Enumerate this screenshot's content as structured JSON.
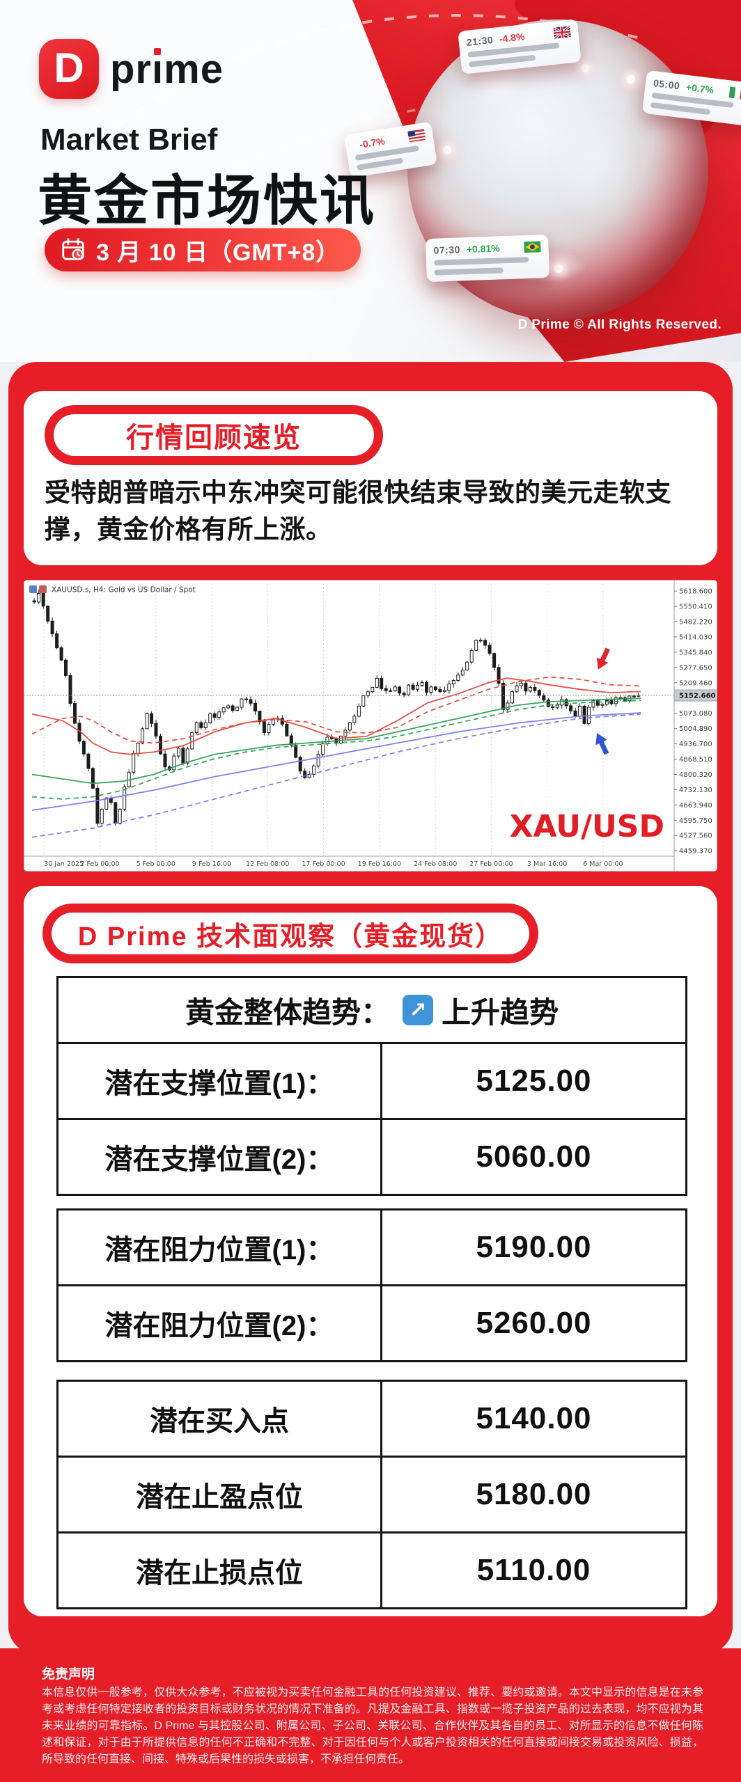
{
  "brand": {
    "d": "D",
    "pre": "pr",
    "stem": "ı",
    "post": "me"
  },
  "header": {
    "kicker": "Market Brief",
    "title": "黄金市场快讯",
    "date": "3 月 10 日（GMT+8）",
    "copyright": "D Prime © All Rights Reserved.",
    "globe_cards": [
      {
        "time": "21:30",
        "change": "-4.8%",
        "dir": "down",
        "flag": "uk"
      },
      {
        "time": "05:00",
        "change": "+0.7%",
        "dir": "up",
        "flag": "it"
      },
      {
        "time": "",
        "change": "-0.7%",
        "dir": "down",
        "flag": "us"
      },
      {
        "time": "07:30",
        "change": "+0.81%",
        "dir": "up",
        "flag": "br"
      }
    ]
  },
  "review": {
    "badge": "行情回顾速览",
    "paragraph": "受特朗普暗示中东冲突可能很快结束导致的美元走软支撑，黄金价格有所上涨。"
  },
  "chart_data": {
    "type": "candlestick",
    "title": "XAUUSD.s, H4: Gold vs US Dollar / Spot",
    "watermark": "XAU/USD",
    "current_price": "5152.660",
    "ylim": [
      4435,
      5650
    ],
    "grid": "dotted",
    "y_ticks": [
      "5618.600",
      "5550.410",
      "5482.220",
      "5414.030",
      "5345.840",
      "5277.650",
      "5209.460",
      "5141.270",
      "5073.080",
      "5004.890",
      "4936.700",
      "4868.510",
      "4800.320",
      "4732.130",
      "4663.940",
      "4595.750",
      "4527.560",
      "4459.370"
    ],
    "x_labels": [
      "30 Jan 2025",
      "2 Feb 00:00",
      "5 Feb 00:00",
      "9 Feb 16:00",
      "12 Feb 08:00",
      "17 Feb 00:00",
      "19 Feb 16:00",
      "24 Feb 08:00",
      "27 Feb 00:00",
      "3 Mar 16:00",
      "6 Mar 00:00"
    ],
    "price_path": [
      [
        0,
        5575
      ],
      [
        0.008,
        5610
      ],
      [
        0.02,
        5500
      ],
      [
        0.035,
        5390
      ],
      [
        0.05,
        5280
      ],
      [
        0.06,
        5120
      ],
      [
        0.07,
        4990
      ],
      [
        0.08,
        4905
      ],
      [
        0.09,
        4815
      ],
      [
        0.1,
        4700
      ],
      [
        0.105,
        4565
      ],
      [
        0.112,
        4650
      ],
      [
        0.12,
        4705
      ],
      [
        0.13,
        4660
      ],
      [
        0.136,
        4545
      ],
      [
        0.145,
        4690
      ],
      [
        0.155,
        4800
      ],
      [
        0.165,
        4900
      ],
      [
        0.175,
        4960
      ],
      [
        0.185,
        5075
      ],
      [
        0.195,
        5020
      ],
      [
        0.205,
        4935
      ],
      [
        0.215,
        4845
      ],
      [
        0.222,
        4805
      ],
      [
        0.23,
        4870
      ],
      [
        0.24,
        4915
      ],
      [
        0.248,
        4840
      ],
      [
        0.26,
        4985
      ],
      [
        0.27,
        5040
      ],
      [
        0.28,
        5000
      ],
      [
        0.29,
        5075
      ],
      [
        0.3,
        5050
      ],
      [
        0.31,
        5090
      ],
      [
        0.32,
        5115
      ],
      [
        0.33,
        5080
      ],
      [
        0.34,
        5125
      ],
      [
        0.35,
        5145
      ],
      [
        0.36,
        5105
      ],
      [
        0.37,
        5070
      ],
      [
        0.38,
        4985
      ],
      [
        0.39,
        5025
      ],
      [
        0.4,
        5060
      ],
      [
        0.41,
        5030
      ],
      [
        0.42,
        4960
      ],
      [
        0.43,
        4895
      ],
      [
        0.44,
        4820
      ],
      [
        0.45,
        4770
      ],
      [
        0.46,
        4815
      ],
      [
        0.47,
        4885
      ],
      [
        0.48,
        4950
      ],
      [
        0.49,
        4970
      ],
      [
        0.5,
        4945
      ],
      [
        0.51,
        4985
      ],
      [
        0.52,
        5015
      ],
      [
        0.53,
        5065
      ],
      [
        0.54,
        5130
      ],
      [
        0.55,
        5165
      ],
      [
        0.56,
        5195
      ],
      [
        0.565,
        5235
      ],
      [
        0.575,
        5180
      ],
      [
        0.585,
        5165
      ],
      [
        0.595,
        5195
      ],
      [
        0.61,
        5150
      ],
      [
        0.62,
        5205
      ],
      [
        0.63,
        5180
      ],
      [
        0.64,
        5215
      ],
      [
        0.65,
        5170
      ],
      [
        0.66,
        5195
      ],
      [
        0.67,
        5160
      ],
      [
        0.68,
        5185
      ],
      [
        0.69,
        5205
      ],
      [
        0.7,
        5235
      ],
      [
        0.71,
        5265
      ],
      [
        0.72,
        5325
      ],
      [
        0.73,
        5395
      ],
      [
        0.737,
        5415
      ],
      [
        0.745,
        5375
      ],
      [
        0.755,
        5335
      ],
      [
        0.765,
        5255
      ],
      [
        0.772,
        5160
      ],
      [
        0.778,
        5065
      ],
      [
        0.785,
        5125
      ],
      [
        0.795,
        5185
      ],
      [
        0.805,
        5205
      ],
      [
        0.815,
        5170
      ],
      [
        0.825,
        5195
      ],
      [
        0.835,
        5150
      ],
      [
        0.845,
        5120
      ],
      [
        0.855,
        5085
      ],
      [
        0.865,
        5115
      ],
      [
        0.875,
        5140
      ],
      [
        0.885,
        5090
      ],
      [
        0.895,
        5060
      ],
      [
        0.902,
        5115
      ],
      [
        0.908,
        5005
      ],
      [
        0.915,
        5085
      ],
      [
        0.925,
        5125
      ],
      [
        0.935,
        5105
      ],
      [
        0.945,
        5135
      ],
      [
        0.955,
        5115
      ],
      [
        0.965,
        5145
      ],
      [
        0.975,
        5130
      ],
      [
        0.985,
        5150
      ],
      [
        1,
        5153
      ]
    ],
    "ma_lines": [
      {
        "color": "#7a7aee",
        "style": "solid",
        "points": [
          [
            0,
            4640
          ],
          [
            0.1,
            4680
          ],
          [
            0.2,
            4730
          ],
          [
            0.3,
            4790
          ],
          [
            0.4,
            4840
          ],
          [
            0.5,
            4890
          ],
          [
            0.6,
            4940
          ],
          [
            0.7,
            4990
          ],
          [
            0.8,
            5030
          ],
          [
            0.9,
            5060
          ],
          [
            1,
            5075
          ]
        ]
      },
      {
        "color": "#7a7aee",
        "style": "dashed",
        "points": [
          [
            0,
            4520
          ],
          [
            0.1,
            4560
          ],
          [
            0.2,
            4620
          ],
          [
            0.3,
            4690
          ],
          [
            0.4,
            4760
          ],
          [
            0.5,
            4830
          ],
          [
            0.6,
            4900
          ],
          [
            0.7,
            4960
          ],
          [
            0.8,
            5010
          ],
          [
            0.9,
            5050
          ],
          [
            1,
            5070
          ]
        ]
      },
      {
        "color": "#2f9e53",
        "style": "solid",
        "points": [
          [
            0,
            4800
          ],
          [
            0.05,
            4780
          ],
          [
            0.1,
            4760
          ],
          [
            0.15,
            4770
          ],
          [
            0.2,
            4800
          ],
          [
            0.25,
            4850
          ],
          [
            0.3,
            4890
          ],
          [
            0.35,
            4910
          ],
          [
            0.4,
            4930
          ],
          [
            0.45,
            4940
          ],
          [
            0.5,
            4950
          ],
          [
            0.55,
            4960
          ],
          [
            0.6,
            4990
          ],
          [
            0.65,
            5020
          ],
          [
            0.7,
            5050
          ],
          [
            0.75,
            5080
          ],
          [
            0.8,
            5110
          ],
          [
            0.85,
            5125
          ],
          [
            0.9,
            5130
          ],
          [
            1,
            5140
          ]
        ]
      },
      {
        "color": "#2f9e53",
        "style": "dashed",
        "points": [
          [
            0,
            4700
          ],
          [
            0.05,
            4690
          ],
          [
            0.1,
            4700
          ],
          [
            0.15,
            4730
          ],
          [
            0.2,
            4780
          ],
          [
            0.25,
            4830
          ],
          [
            0.3,
            4870
          ],
          [
            0.35,
            4900
          ],
          [
            0.4,
            4920
          ],
          [
            0.45,
            4930
          ],
          [
            0.5,
            4940
          ],
          [
            0.55,
            4950
          ],
          [
            0.6,
            4970
          ],
          [
            0.65,
            5000
          ],
          [
            0.7,
            5030
          ],
          [
            0.75,
            5060
          ],
          [
            0.8,
            5090
          ],
          [
            0.85,
            5110
          ],
          [
            0.9,
            5120
          ],
          [
            1,
            5130
          ]
        ]
      },
      {
        "color": "#e2483d",
        "style": "solid",
        "points": [
          [
            0,
            5070
          ],
          [
            0.05,
            5040
          ],
          [
            0.08,
            4990
          ],
          [
            0.1,
            4940
          ],
          [
            0.13,
            4900
          ],
          [
            0.16,
            4890
          ],
          [
            0.2,
            4900
          ],
          [
            0.25,
            4930
          ],
          [
            0.3,
            4990
          ],
          [
            0.35,
            5030
          ],
          [
            0.4,
            5050
          ],
          [
            0.45,
            5010
          ],
          [
            0.5,
            4960
          ],
          [
            0.55,
            4970
          ],
          [
            0.6,
            5040
          ],
          [
            0.65,
            5120
          ],
          [
            0.7,
            5160
          ],
          [
            0.75,
            5210
          ],
          [
            0.78,
            5230
          ],
          [
            0.82,
            5215
          ],
          [
            0.85,
            5200
          ],
          [
            0.9,
            5180
          ],
          [
            0.95,
            5165
          ],
          [
            1,
            5170
          ]
        ]
      },
      {
        "color": "#e2483d",
        "style": "dashed",
        "points": [
          [
            0,
            4980
          ],
          [
            0.05,
            5050
          ],
          [
            0.08,
            5060
          ],
          [
            0.1,
            5040
          ],
          [
            0.13,
            4990
          ],
          [
            0.16,
            4950
          ],
          [
            0.2,
            4940
          ],
          [
            0.25,
            4960
          ],
          [
            0.3,
            5000
          ],
          [
            0.35,
            5030
          ],
          [
            0.4,
            5045
          ],
          [
            0.45,
            5035
          ],
          [
            0.5,
            4990
          ],
          [
            0.55,
            4985
          ],
          [
            0.6,
            5010
          ],
          [
            0.65,
            5080
          ],
          [
            0.7,
            5130
          ],
          [
            0.75,
            5180
          ],
          [
            0.8,
            5215
          ],
          [
            0.85,
            5235
          ],
          [
            0.9,
            5225
          ],
          [
            0.95,
            5200
          ],
          [
            1,
            5195
          ]
        ]
      }
    ],
    "annotations": [
      {
        "shape": "arrow",
        "color": "#e0262b",
        "x": 0.93,
        "price": 5268,
        "dir": "down"
      },
      {
        "shape": "arrow",
        "color": "#2f55d4",
        "x": 0.928,
        "price": 4985,
        "dir": "up"
      }
    ]
  },
  "analysis": {
    "badge": "D Prime 技术面观察（黄金现货）",
    "trend_label": "黄金整体趋势：",
    "trend_icon": "↗",
    "trend_value": "上升趋势",
    "support": [
      {
        "label": "潜在支撑位置(1)：",
        "value": "5125.00"
      },
      {
        "label": "潜在支撑位置(2)：",
        "value": "5060.00"
      }
    ],
    "resistance": [
      {
        "label": "潜在阻力位置(1)：",
        "value": "5190.00"
      },
      {
        "label": "潜在阻力位置(2)：",
        "value": "5260.00"
      }
    ],
    "trade": [
      {
        "label": "潜在买入点",
        "value": "5140.00"
      },
      {
        "label": "潜在止盈点位",
        "value": "5180.00"
      },
      {
        "label": "潜在止损点位",
        "value": "5110.00"
      }
    ]
  },
  "disclaimer": {
    "title": "免责声明",
    "body": "本信息仅供一般参考，仅供大众参考，不应被视为买卖任何金融工具的任何投资建议、推荐、要约或邀请。本文中显示的信息是在未参考或考虑任何特定接收者的投资目标或财务状况的情况下准备的。凡提及金融工具、指数或一揽子投资产品的过去表现，均不应视为其未来业绩的可靠指标。D Prime 与其控股公司、附属公司、子公司、关联公司、合作伙伴及其各自的员工、对所显示的信息不做任何陈述和保证，对于由于所提供信息的任何不正确和不完整、对于因任何与个人或客户投资相关的任何直接或间接交易或投资风险、损益，所导致的任何直接、间接、特殊或后果性的损失或损害，不承担任何责任。"
  }
}
